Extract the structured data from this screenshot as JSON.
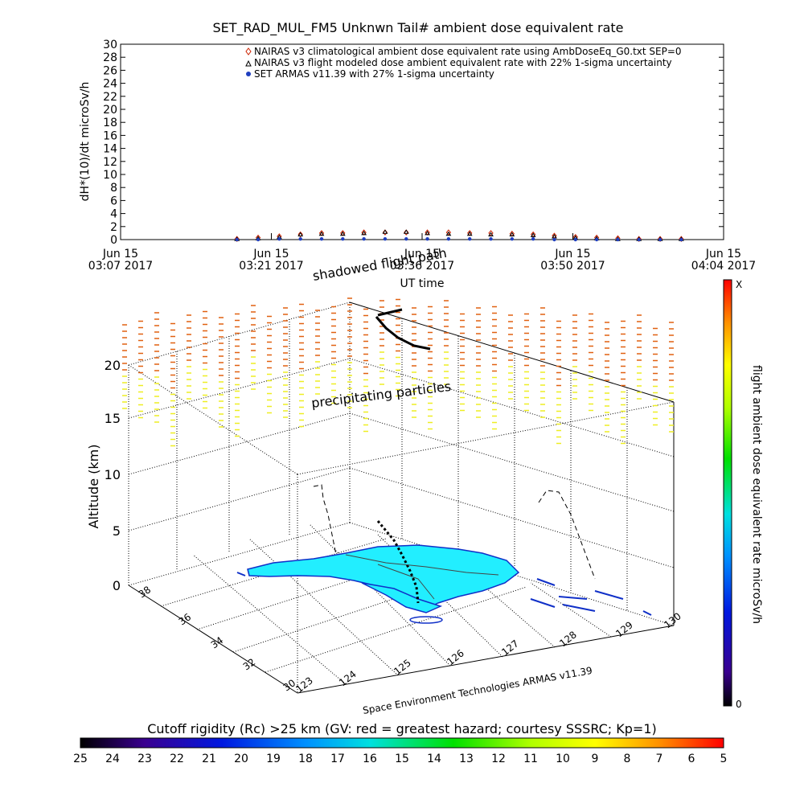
{
  "title": "SET_RAD_MUL_FM5 Unknwn Tail#  ambient dose equivalent rate",
  "top_chart": {
    "ylabel": "dH*(10)/dt microSv/h",
    "xlabel": "UT time",
    "ylim": [
      0,
      30
    ],
    "y_ticks": [
      "0",
      "2",
      "4",
      "6",
      "8",
      "10",
      "12",
      "14",
      "16",
      "18",
      "20",
      "22",
      "24",
      "26",
      "28",
      "30"
    ],
    "x_ticks": [
      {
        "line1": "Jun 15",
        "line2": "03:07 2017"
      },
      {
        "line1": "Jun 15",
        "line2": "03:21 2017"
      },
      {
        "line1": "Jun 15",
        "line2": "03:36 2017"
      },
      {
        "line1": "Jun 15",
        "line2": "03:50 2017"
      },
      {
        "line1": "Jun 15",
        "line2": "04:04 2017"
      }
    ],
    "legend": [
      "NAIRAS v3 climatological ambient dose equivalent rate using AmbDoseEq_G0.txt SEP=0",
      "NAIRAS v3 flight modeled dose ambient equivalent rate with 22% 1-sigma uncertainty",
      "SET ARMAS v11.39 with 27% 1-sigma uncertainty"
    ],
    "legend_colors": [
      "#cc2200",
      "#000000",
      "#1f3fbf"
    ]
  },
  "chart_data": {
    "type": "scatter",
    "title": "SET_RAD_MUL_FM5 Unknwn Tail#  ambient dose equivalent rate",
    "xlabel": "UT time",
    "ylabel": "dH*(10)/dt microSv/h",
    "ylim": [
      0,
      30
    ],
    "x": [
      "03:18",
      "03:20",
      "03:22",
      "03:24",
      "03:26",
      "03:28",
      "03:30",
      "03:32",
      "03:34",
      "03:36",
      "03:38",
      "03:40",
      "03:42",
      "03:44",
      "03:46",
      "03:48",
      "03:50",
      "03:52",
      "03:54",
      "03:56",
      "03:58",
      "04:00"
    ],
    "series": [
      {
        "name": "NAIRAS v3 climatological ambient dose equivalent rate using AmbDoseEq_G0.txt SEP=0",
        "values": [
          0.1,
          0.3,
          0.5,
          0.8,
          1.0,
          1.0,
          1.1,
          1.1,
          1.1,
          1.1,
          1.1,
          1.0,
          1.0,
          0.9,
          0.8,
          0.6,
          0.4,
          0.3,
          0.2,
          0.1,
          0.1,
          0.1
        ]
      },
      {
        "name": "NAIRAS v3 flight modeled dose ambient equivalent rate with 22% 1-sigma uncertainty",
        "values": [
          0.1,
          0.2,
          0.4,
          0.8,
          0.9,
          0.9,
          1.0,
          1.2,
          1.2,
          1.0,
          0.9,
          0.9,
          0.8,
          0.8,
          0.7,
          0.5,
          0.3,
          0.2,
          0.1,
          0.1,
          0.1,
          0.1
        ]
      },
      {
        "name": "SET ARMAS v11.39 with 27% 1-sigma uncertainty",
        "values": [
          0.0,
          0.0,
          0.1,
          0.1,
          0.1,
          0.1,
          0.1,
          0.1,
          0.1,
          0.1,
          0.1,
          0.1,
          0.1,
          0.1,
          0.1,
          0.0,
          0.0,
          0.0,
          0.0,
          0.0,
          0.0,
          0.0
        ]
      }
    ]
  },
  "plot3d": {
    "zlabel": "Altitude (km)",
    "z_ticks": [
      "0",
      "5",
      "10",
      "15",
      "20"
    ],
    "lat_ticks": [
      "38",
      "36",
      "34",
      "32",
      "30"
    ],
    "lon_ticks": [
      "123",
      "124",
      "125",
      "126",
      "127",
      "128",
      "129",
      "130"
    ],
    "annotations": {
      "shadowed": "shadowed flight path",
      "precip": "precipitating particles"
    },
    "credit": "Space Environment Technologies ARMAS v11.39"
  },
  "right_bar": {
    "label": "flight ambient dose equivalent rate microSv/h",
    "top": "X",
    "bottom": "0"
  },
  "bottom_bar": {
    "title": "Cutoff rigidity (Rc) >25 km (GV: red = greatest hazard; courtesy SSSRC; Kp=1)",
    "ticks": [
      "25",
      "24",
      "23",
      "22",
      "21",
      "20",
      "19",
      "18",
      "17",
      "16",
      "15",
      "14",
      "13",
      "12",
      "11",
      "10",
      "9",
      "8",
      "7",
      "6",
      "5"
    ]
  },
  "colors": {
    "climatological": "#cc2200",
    "armas": "#1f3fbf",
    "land": "#22eeff",
    "coast": "#1030c8",
    "precip_high": "#e06010",
    "precip_low": "#eeee22"
  }
}
